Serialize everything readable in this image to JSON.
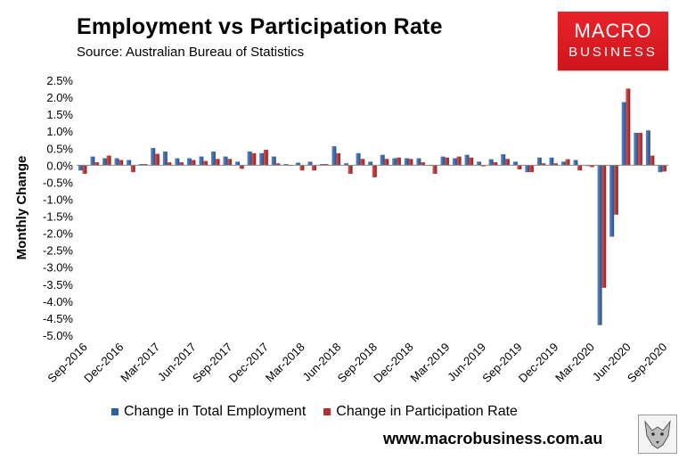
{
  "header": {
    "title": "Employment vs Participation Rate",
    "source": "Source: Australian Bureau of Statistics"
  },
  "logo": {
    "line1": "MACRO",
    "line2": "BUSINESS"
  },
  "footer": {
    "website": "www.macrobusiness.com.au"
  },
  "colors": {
    "employment": "#2e5fa3",
    "participation": "#b82c2c",
    "logo_red": "#e1262c"
  },
  "chart_data": {
    "type": "bar",
    "title": "Employment vs Participation Rate",
    "ylabel": "Monthly Change",
    "xlabel": "",
    "ylim": [
      -5.0,
      2.5
    ],
    "yticks": [
      2.5,
      2.0,
      1.5,
      1.0,
      0.5,
      0.0,
      -0.5,
      -1.0,
      -1.5,
      -2.0,
      -2.5,
      -3.0,
      -3.5,
      -4.0,
      -4.5,
      -5.0
    ],
    "ytick_labels": [
      "2.5%",
      "2.0%",
      "1.5%",
      "1.0%",
      "0.5%",
      "0.0%",
      "-0.5%",
      "-1.0%",
      "-1.5%",
      "-2.0%",
      "-2.5%",
      "-3.0%",
      "-3.5%",
      "-4.0%",
      "-4.5%",
      "-5.0%"
    ],
    "categories": [
      "Sep-2016",
      "Oct-2016",
      "Nov-2016",
      "Dec-2016",
      "Jan-2017",
      "Feb-2017",
      "Mar-2017",
      "Apr-2017",
      "May-2017",
      "Jun-2017",
      "Jul-2017",
      "Aug-2017",
      "Sep-2017",
      "Oct-2017",
      "Nov-2017",
      "Dec-2017",
      "Jan-2018",
      "Feb-2018",
      "Mar-2018",
      "Apr-2018",
      "May-2018",
      "Jun-2018",
      "Jul-2018",
      "Aug-2018",
      "Sep-2018",
      "Oct-2018",
      "Nov-2018",
      "Dec-2018",
      "Jan-2019",
      "Feb-2019",
      "Mar-2019",
      "Apr-2019",
      "May-2019",
      "Jun-2019",
      "Jul-2019",
      "Aug-2019",
      "Sep-2019",
      "Oct-2019",
      "Nov-2019",
      "Dec-2019",
      "Jan-2020",
      "Feb-2020",
      "Mar-2020",
      "Apr-2020",
      "May-2020",
      "Jun-2020",
      "Jul-2020",
      "Aug-2020",
      "Sep-2020"
    ],
    "xtick_labels": [
      "Sep-2016",
      "Dec-2016",
      "Mar-2017",
      "Jun-2017",
      "Sep-2017",
      "Dec-2017",
      "Mar-2018",
      "Jun-2018",
      "Sep-2018",
      "Dec-2018",
      "Mar-2019",
      "Jun-2019",
      "Sep-2019",
      "Dec-2019",
      "Mar-2020",
      "Jun-2020",
      "Sep-2020"
    ],
    "series": [
      {
        "name": "Change in Total Employment",
        "values": [
          -0.15,
          0.25,
          0.2,
          0.2,
          0.15,
          0.03,
          0.5,
          0.4,
          0.2,
          0.2,
          0.25,
          0.4,
          0.25,
          0.1,
          0.4,
          0.35,
          0.25,
          0.03,
          0.07,
          0.1,
          0.03,
          0.55,
          0.05,
          0.35,
          0.1,
          0.3,
          0.2,
          0.2,
          0.2,
          0.0,
          0.25,
          0.2,
          0.3,
          0.1,
          0.17,
          0.32,
          0.1,
          -0.2,
          0.22,
          0.22,
          0.1,
          0.15,
          -0.02,
          -4.7,
          -2.1,
          1.85,
          0.95,
          1.02,
          -0.2
        ]
      },
      {
        "name": "Change in Participation Rate",
        "values": [
          -0.25,
          0.08,
          0.28,
          0.15,
          -0.2,
          0.03,
          0.33,
          0.08,
          0.08,
          0.15,
          0.12,
          0.18,
          0.18,
          -0.1,
          0.35,
          0.45,
          0.05,
          0.0,
          -0.15,
          -0.15,
          0.03,
          0.35,
          -0.25,
          0.18,
          -0.35,
          0.18,
          0.22,
          0.18,
          0.08,
          -0.25,
          0.22,
          0.25,
          0.22,
          -0.03,
          0.08,
          0.18,
          -0.12,
          -0.2,
          0.05,
          0.05,
          0.17,
          -0.15,
          -0.05,
          -3.6,
          -1.45,
          2.25,
          0.95,
          0.28,
          -0.18
        ]
      }
    ],
    "legend": "bottom-center"
  }
}
